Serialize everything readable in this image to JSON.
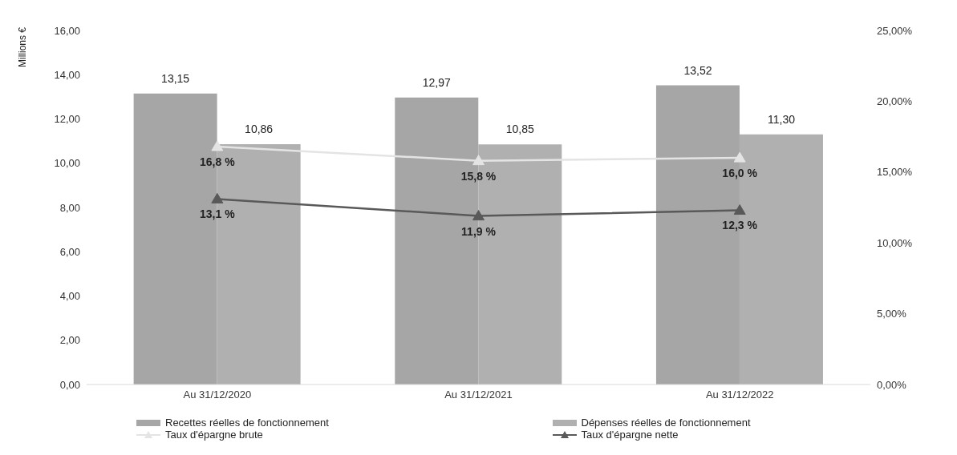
{
  "chart_data": {
    "type": "bar",
    "ylabel": "Millions €",
    "categories": [
      "Au 31/12/2020",
      "Au 31/12/2021",
      "Au 31/12/2022"
    ],
    "series": [
      {
        "name": "Recettes réelles de fonctionnement",
        "color": "#a6a6a6",
        "values": [
          13.15,
          12.97,
          13.52
        ],
        "value_labels": [
          "13,15",
          "12,97",
          "13,52"
        ]
      },
      {
        "name": "Dépenses réelles de fonctionnement",
        "color": "#b0b0b0",
        "values": [
          10.86,
          10.85,
          11.3
        ],
        "value_labels": [
          "10,86",
          "10,85",
          "11,30"
        ]
      },
      {
        "name": "Taux d'épargne brute",
        "type": "line",
        "axis": "y2",
        "color": "#e4e4e4",
        "marker": "triangle",
        "values": [
          16.8,
          15.8,
          16.0
        ],
        "value_labels": [
          "16,8 %",
          "15,8 %",
          "16,0 %"
        ]
      },
      {
        "name": "Taux d'épargne nette",
        "type": "line",
        "axis": "y2",
        "color": "#595959",
        "marker": "triangle",
        "values": [
          13.1,
          11.9,
          12.3
        ],
        "value_labels": [
          "13,1 %",
          "11,9 %",
          "12,3 %"
        ]
      }
    ],
    "ylim": [
      0,
      16
    ],
    "yticks": [
      {
        "value": 0,
        "label": "0,00"
      },
      {
        "value": 2,
        "label": "2,00"
      },
      {
        "value": 4,
        "label": "4,00"
      },
      {
        "value": 6,
        "label": "6,00"
      },
      {
        "value": 8,
        "label": "8,00"
      },
      {
        "value": 10,
        "label": "10,00"
      },
      {
        "value": 12,
        "label": "12,00"
      },
      {
        "value": 14,
        "label": "14,00"
      },
      {
        "value": 16,
        "label": "16,00"
      }
    ],
    "y2lim": [
      0,
      25
    ],
    "y2ticks": [
      {
        "value": 0,
        "label": "0,00%"
      },
      {
        "value": 5,
        "label": "5,00%"
      },
      {
        "value": 10,
        "label": "10,00%"
      },
      {
        "value": 15,
        "label": "15,00%"
      },
      {
        "value": 20,
        "label": "20,00%"
      },
      {
        "value": 25,
        "label": "25,00%"
      }
    ],
    "legend": "bottom"
  }
}
